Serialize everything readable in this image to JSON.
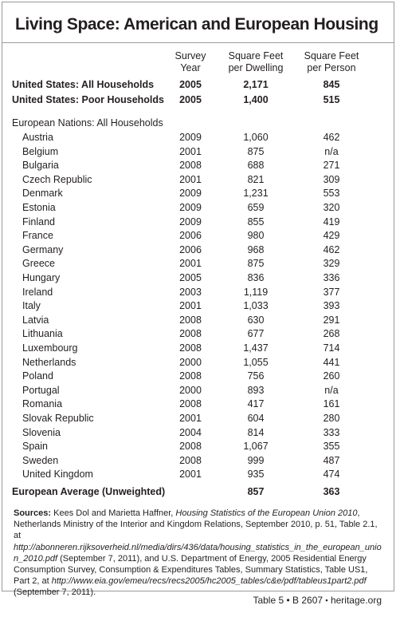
{
  "header": {
    "title": "Living Space: American and European Housing"
  },
  "columns": [
    [
      "Survey",
      "Year"
    ],
    [
      "Square Feet",
      "per Dwelling"
    ],
    [
      "Square Feet",
      "per Person"
    ]
  ],
  "us_rows": [
    [
      "United States: All Households",
      "2005",
      "2,171",
      "845"
    ],
    [
      "United States: Poor Households",
      "2005",
      "1,400",
      "515"
    ]
  ],
  "europe": {
    "label": "European Nations: All Households",
    "rows": [
      [
        "Austria",
        "2009",
        "1,060",
        "462"
      ],
      [
        "Belgium",
        "2001",
        "875",
        "n/a"
      ],
      [
        "Bulgaria",
        "2008",
        "688",
        "271"
      ],
      [
        "Czech Republic",
        "2001",
        "821",
        "309"
      ],
      [
        "Denmark",
        "2009",
        "1,231",
        "553"
      ],
      [
        "Estonia",
        "2009",
        "659",
        "320"
      ],
      [
        "Finland",
        "2009",
        "855",
        "419"
      ],
      [
        "France",
        "2006",
        "980",
        "429"
      ],
      [
        "Germany",
        "2006",
        "968",
        "462"
      ],
      [
        "Greece",
        "2001",
        "875",
        "329"
      ],
      [
        "Hungary",
        "2005",
        "836",
        "336"
      ],
      [
        "Ireland",
        "2003",
        "1,119",
        "377"
      ],
      [
        "Italy",
        "2001",
        "1,033",
        "393"
      ],
      [
        "Latvia",
        "2008",
        "630",
        "291"
      ],
      [
        "Lithuania",
        "2008",
        "677",
        "268"
      ],
      [
        "Luxembourg",
        "2008",
        "1,437",
        "714"
      ],
      [
        "Netherlands",
        "2000",
        "1,055",
        "441"
      ],
      [
        "Poland",
        "2008",
        "756",
        "260"
      ],
      [
        "Portugal",
        "2000",
        "893",
        "n/a"
      ],
      [
        "Romania",
        "2008",
        "417",
        "161"
      ],
      [
        "Slovak Republic",
        "2001",
        "604",
        "280"
      ],
      [
        "Slovenia",
        "2004",
        "814",
        "333"
      ],
      [
        "Spain",
        "2008",
        "1,067",
        "355"
      ],
      [
        "Sweden",
        "2008",
        "999",
        "487"
      ],
      [
        "United Kingdom",
        "2001",
        "935",
        "474"
      ]
    ]
  },
  "average": [
    "European Average (Unweighted)",
    "857",
    "363"
  ],
  "sources": {
    "label": "Sources:",
    "parts": [
      " Kees Dol and Marietta Haffner, ",
      "Housing Statistics of the European Union 2010",
      ", Netherlands Ministry of the Interior and Kingdom Relations, September 2010, p. 51, Table 2.1, at ",
      "http://abonneren.rijksoverheid.nl/media/dirs/436/data/housing_statistics_in_the_european_union_2010.pdf",
      " (September 7, 2011), and U.S. Department of Energy, 2005 Residential Energy Consumption Survey, Consumption & Expenditures Tables, Summary Statistics, Table US1, Part 2, at ",
      "http://www.eia.gov/emeu/recs/recs2005/hc2005_tables/c&e/pdf/tableus1part2.pdf",
      " (September 7, 2011)."
    ]
  },
  "footer": {
    "table_id": "Table 5 • B 2607",
    "site": "heritage.org"
  }
}
